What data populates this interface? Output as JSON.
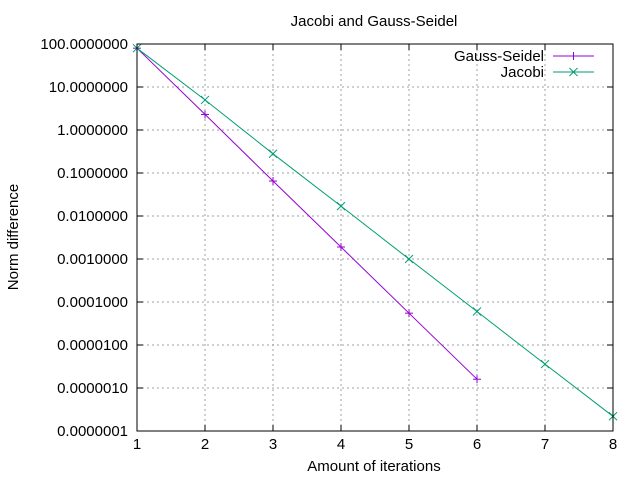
{
  "chart_data": {
    "type": "line",
    "title": "Jacobi and Gauss-Seidel",
    "xlabel": "Amount of iterations",
    "ylabel": "Norm difference",
    "xlim": [
      1,
      8
    ],
    "ylim": [
      1e-07,
      100
    ],
    "yscale": "log",
    "grid": true,
    "legend_position": "top-right",
    "x_ticks": [
      "1",
      "2",
      "3",
      "4",
      "5",
      "6",
      "7",
      "8"
    ],
    "y_ticks": [
      "0.0000001",
      "0.0000010",
      "0.0000100",
      "0.0001000",
      "0.0010000",
      "0.0100000",
      "0.1000000",
      "1.0000000",
      "10.0000000",
      "100.0000000"
    ],
    "series": [
      {
        "name": "Gauss-Seidel",
        "color": "#9400d3",
        "marker": "plus",
        "x": [
          1,
          2,
          3,
          4,
          5,
          6
        ],
        "y": [
          80,
          2.3,
          0.065,
          0.0019,
          5.5e-05,
          1.6e-06
        ]
      },
      {
        "name": "Jacobi",
        "color": "#009e73",
        "marker": "cross",
        "x": [
          1,
          2,
          3,
          4,
          5,
          6,
          7,
          8
        ],
        "y": [
          80,
          5,
          0.28,
          0.017,
          0.001,
          6e-05,
          3.6e-06,
          2.2e-07
        ]
      }
    ]
  }
}
